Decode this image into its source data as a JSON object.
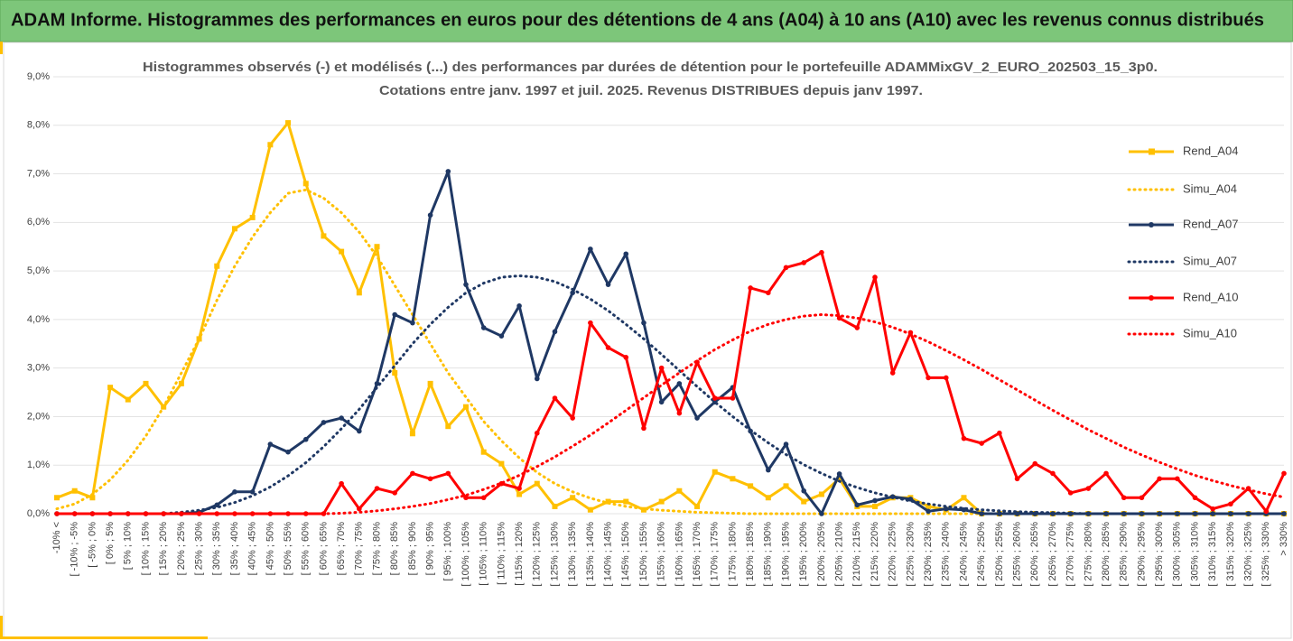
{
  "chart_data": {
    "type": "line",
    "title": "ADAM Informe. Histogrammes des performances en euros pour des détentions de 4 ans (A04) à 10 ans (A10) avec les revenus connus distribués",
    "subtitle": [
      "Histogrammes observés (-) et modélisés (...) des performances par durées de détention pour  le portefeuille ADAMMixGV_2_EURO_202503_15_3p0.",
      "Cotations entre janv. 1997 et juil. 2025. Revenus DISTRIBUES depuis janv 1997."
    ],
    "categories": [
      "-10% <",
      "[ -10% ; -5%",
      "[ -5% ; 0%",
      "[ 0% ; 5%",
      "[ 5% ; 10%",
      "[ 10% ; 15%",
      "[ 15% ; 20%",
      "[ 20% ; 25%",
      "[ 25% ; 30%",
      "[ 30% ; 35%",
      "[ 35% ; 40%",
      "[ 40% ; 45%",
      "[ 45% ; 50%",
      "[ 50% ; 55%",
      "[ 55% ; 60%",
      "[ 60% ; 65%",
      "[ 65% ; 70%",
      "[ 70% ; 75%",
      "[ 75% ; 80%",
      "[ 80% ; 85%",
      "[ 85% ; 90%",
      "[ 90% ; 95%",
      "[ 95% ; 100%",
      "[ 100% ; 105%",
      "[ 105% ; 110%",
      "[ 110% ; 115%",
      "[ 115% ; 120%",
      "[ 120% ; 125%",
      "[ 125% ; 130%",
      "[ 130% ; 135%",
      "[ 135% ; 140%",
      "[ 140% ; 145%",
      "[ 145% ; 150%",
      "[ 150% ; 155%",
      "[ 155% ; 160%",
      "[ 160% ; 165%",
      "[ 165% ; 170%",
      "[ 170% ; 175%",
      "[ 175% ; 180%",
      "[ 180% ; 185%",
      "[ 185% ; 190%",
      "[ 190% ; 195%",
      "[ 195% ; 200%",
      "[ 200% ; 205%",
      "[ 205% ; 210%",
      "[ 210% ; 215%",
      "[ 215% ; 220%",
      "[ 220% ; 225%",
      "[ 225% ; 230%",
      "[ 230% ; 235%",
      "[ 235% ; 240%",
      "[ 240% ; 245%",
      "[ 245% ; 250%",
      "[ 250% ; 255%",
      "[ 255% ; 260%",
      "[ 260% ; 265%",
      "[ 265% ; 270%",
      "[ 270% ; 275%",
      "[ 275% ; 280%",
      "[ 280% ; 285%",
      "[ 285% ; 290%",
      "[ 290% ; 295%",
      "[ 295% ; 300%",
      "[ 300% ; 305%",
      "[ 305% ; 310%",
      "[ 310% ; 315%",
      "[ 315% ; 320%",
      "[ 320% ; 325%",
      "[ 325% ; 330%",
      "> 330%"
    ],
    "series": [
      {
        "name": "Rend_A04",
        "color": "#ffc000",
        "dash": "solid",
        "marker": "square",
        "values": [
          0.33,
          0.47,
          0.33,
          2.6,
          2.35,
          2.68,
          2.2,
          2.68,
          3.6,
          5.1,
          5.87,
          6.1,
          7.6,
          8.05,
          6.8,
          5.72,
          5.4,
          4.55,
          5.5,
          2.9,
          1.65,
          2.68,
          1.8,
          2.2,
          1.27,
          1.03,
          0.4,
          0.62,
          0.15,
          0.33,
          0.08,
          0.25,
          0.25,
          0.08,
          0.25,
          0.47,
          0.15,
          0.86,
          0.72,
          0.57,
          0.33,
          0.57,
          0.25,
          0.4,
          0.72,
          0.15,
          0.15,
          0.33,
          0.33,
          0.15,
          0.08,
          0.33,
          0,
          0,
          0,
          0,
          0,
          0,
          0,
          0,
          0,
          0,
          0,
          0,
          0,
          0,
          0,
          0,
          0,
          0
        ]
      },
      {
        "name": "Simu_A04",
        "color": "#ffc000",
        "dash": "dotted",
        "marker": null,
        "values": [
          0.1,
          0.2,
          0.4,
          0.7,
          1.1,
          1.6,
          2.2,
          2.9,
          3.6,
          4.4,
          5.1,
          5.7,
          6.2,
          6.6,
          6.67,
          6.5,
          6.2,
          5.8,
          5.3,
          4.7,
          4.1,
          3.5,
          2.9,
          2.4,
          1.9,
          1.5,
          1.15,
          0.85,
          0.62,
          0.45,
          0.32,
          0.22,
          0.15,
          0.1,
          0.07,
          0.05,
          0.03,
          0.02,
          0.01,
          0,
          0,
          0,
          0,
          0,
          0,
          0,
          0,
          0,
          0,
          0,
          0,
          0,
          0,
          0,
          0,
          0,
          0,
          0,
          0,
          0,
          0,
          0,
          0,
          0,
          0,
          0,
          0,
          0,
          0,
          0
        ]
      },
      {
        "name": "Rend_A07",
        "color": "#1f3864",
        "dash": "solid",
        "marker": "circle",
        "values": [
          0,
          0,
          0,
          0,
          0,
          0,
          0,
          0,
          0.03,
          0.18,
          0.45,
          0.45,
          1.43,
          1.27,
          1.53,
          1.88,
          1.97,
          1.7,
          2.68,
          4.1,
          3.93,
          6.15,
          7.05,
          4.72,
          3.83,
          3.66,
          4.28,
          2.78,
          3.75,
          4.55,
          5.45,
          4.72,
          5.35,
          3.93,
          2.3,
          2.68,
          1.97,
          2.3,
          2.6,
          1.7,
          0.9,
          1.43,
          0.47,
          0,
          0.82,
          0.18,
          0.27,
          0.35,
          0.3,
          0.05,
          0.1,
          0.08,
          0,
          0,
          0,
          0,
          0,
          0,
          0,
          0,
          0,
          0,
          0,
          0,
          0,
          0,
          0,
          0,
          0,
          0
        ]
      },
      {
        "name": "Simu_A07",
        "color": "#1f3864",
        "dash": "dotted",
        "marker": null,
        "values": [
          0,
          0,
          0,
          0,
          0,
          0,
          0,
          0.03,
          0.07,
          0.13,
          0.23,
          0.37,
          0.55,
          0.78,
          1.05,
          1.38,
          1.75,
          2.15,
          2.6,
          3.05,
          3.5,
          3.9,
          4.25,
          4.55,
          4.75,
          4.87,
          4.9,
          4.87,
          4.78,
          4.62,
          4.42,
          4.18,
          3.9,
          3.6,
          3.28,
          2.95,
          2.62,
          2.3,
          2.0,
          1.72,
          1.46,
          1.22,
          1.01,
          0.83,
          0.67,
          0.54,
          0.43,
          0.34,
          0.26,
          0.2,
          0.15,
          0.11,
          0.08,
          0.06,
          0.04,
          0.03,
          0.02,
          0.01,
          0,
          0,
          0,
          0,
          0,
          0,
          0,
          0,
          0,
          0,
          0,
          0
        ]
      },
      {
        "name": "Rend_A10",
        "color": "#ff0000",
        "dash": "solid",
        "marker": "circle",
        "values": [
          0,
          0,
          0,
          0,
          0,
          0,
          0,
          0,
          0,
          0,
          0,
          0,
          0,
          0,
          0,
          0,
          0.62,
          0.1,
          0.52,
          0.43,
          0.83,
          0.72,
          0.83,
          0.33,
          0.33,
          0.62,
          0.52,
          1.66,
          2.38,
          1.97,
          3.93,
          3.42,
          3.22,
          1.76,
          3.0,
          2.07,
          3.12,
          2.38,
          2.38,
          4.65,
          4.55,
          5.07,
          5.17,
          5.38,
          4.03,
          3.83,
          4.87,
          2.9,
          3.73,
          2.8,
          2.8,
          1.55,
          1.45,
          1.66,
          0.72,
          1.03,
          0.83,
          0.43,
          0.52,
          0.83,
          0.33,
          0.33,
          0.72,
          0.72,
          0.33,
          0.1,
          0.2,
          0.52,
          0.05,
          0.83
        ]
      },
      {
        "name": "Simu_A10",
        "color": "#ff0000",
        "dash": "dotted",
        "marker": null,
        "values": [
          0,
          0,
          0,
          0,
          0,
          0,
          0,
          0,
          0,
          0,
          0,
          0,
          0,
          0,
          0,
          0,
          0.01,
          0.03,
          0.06,
          0.1,
          0.15,
          0.21,
          0.29,
          0.38,
          0.5,
          0.63,
          0.79,
          0.97,
          1.17,
          1.39,
          1.62,
          1.87,
          2.13,
          2.39,
          2.65,
          2.9,
          3.15,
          3.38,
          3.58,
          3.76,
          3.9,
          4.0,
          4.07,
          4.1,
          4.08,
          4.03,
          3.95,
          3.84,
          3.7,
          3.54,
          3.36,
          3.17,
          2.97,
          2.76,
          2.55,
          2.34,
          2.13,
          1.93,
          1.73,
          1.55,
          1.37,
          1.21,
          1.06,
          0.92,
          0.79,
          0.68,
          0.58,
          0.49,
          0.41,
          0.34
        ]
      }
    ],
    "ylim": [
      0,
      9
    ],
    "yticks": [
      {
        "value": 0,
        "label": "0,0%"
      },
      {
        "value": 1,
        "label": "1,0%"
      },
      {
        "value": 2,
        "label": "2,0%"
      },
      {
        "value": 3,
        "label": "3,0%"
      },
      {
        "value": 4,
        "label": "4,0%"
      },
      {
        "value": 5,
        "label": "5,0%"
      },
      {
        "value": 6,
        "label": "6,0%"
      },
      {
        "value": 7,
        "label": "7,0%"
      },
      {
        "value": 8,
        "label": "8,0%"
      },
      {
        "value": 9,
        "label": "9,0%"
      }
    ],
    "grid": true,
    "legend": "right"
  }
}
